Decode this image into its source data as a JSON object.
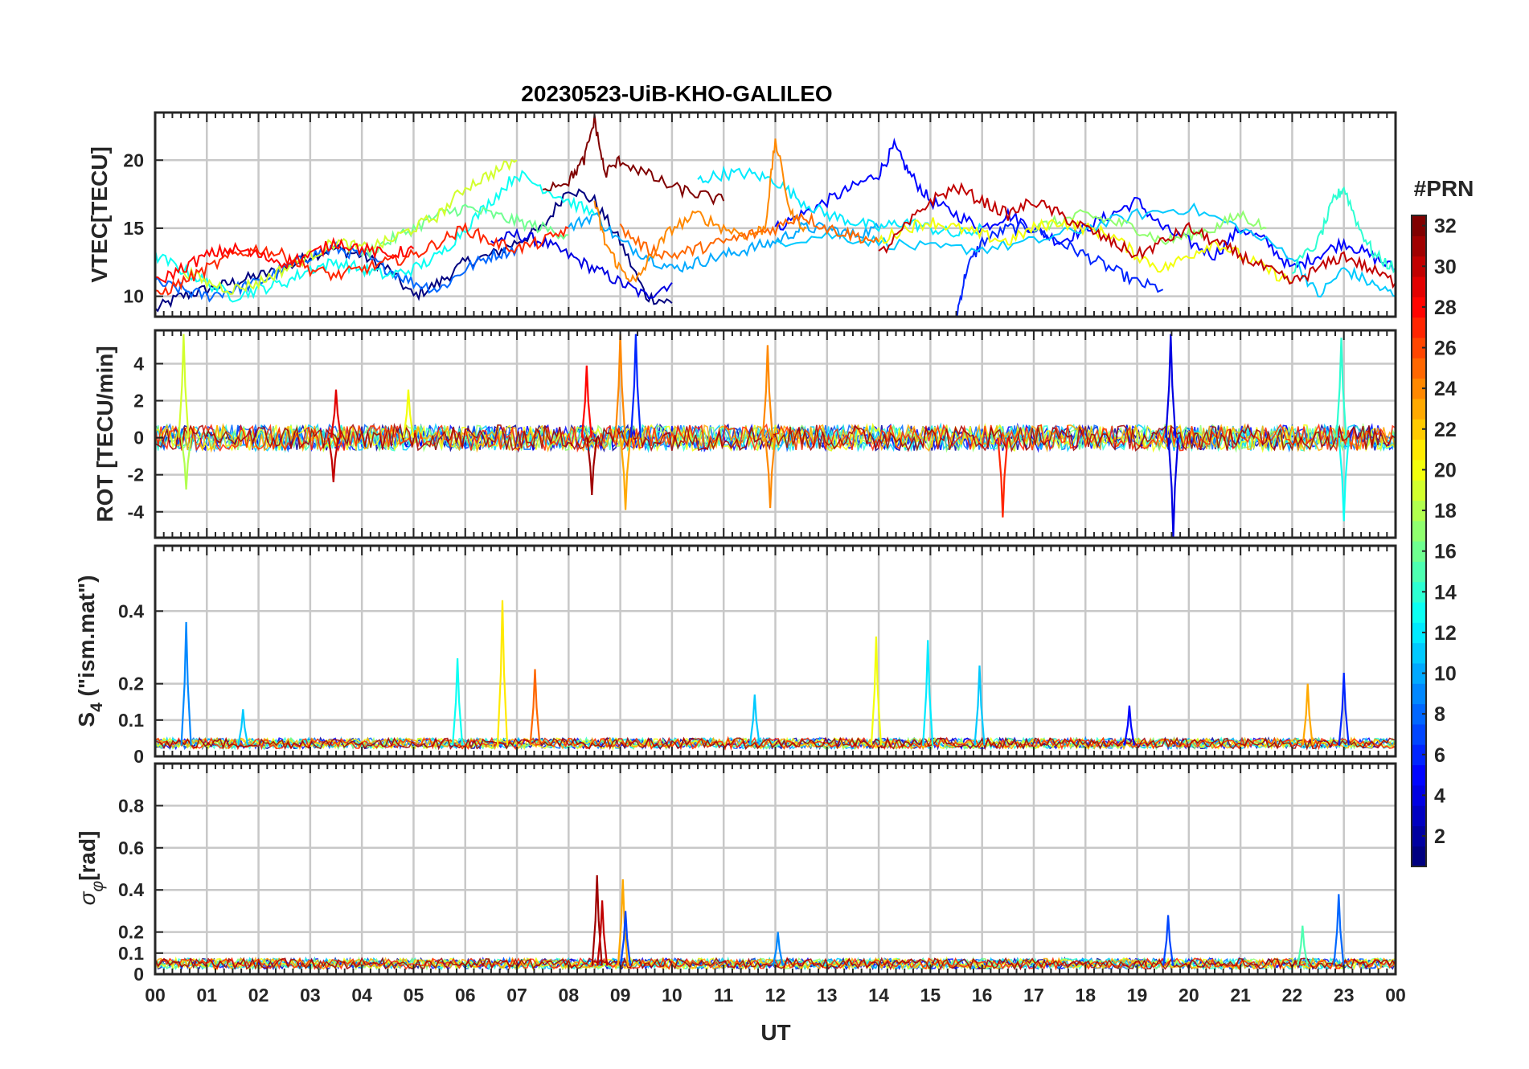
{
  "chart_data": {
    "type": "line",
    "title": "20230523-UiB-KHO-GALILEO",
    "xlabel": "UT",
    "x_tick_labels": [
      "00",
      "01",
      "02",
      "03",
      "04",
      "05",
      "06",
      "07",
      "08",
      "09",
      "10",
      "11",
      "12",
      "13",
      "14",
      "15",
      "16",
      "17",
      "18",
      "19",
      "20",
      "21",
      "22",
      "23",
      "00"
    ],
    "x_range_hours": [
      0,
      24
    ],
    "grid": true,
    "colorbar": {
      "label": "#PRN",
      "range": [
        1,
        32
      ],
      "tick_labels": [
        "2",
        "4",
        "6",
        "8",
        "10",
        "12",
        "14",
        "16",
        "18",
        "20",
        "22",
        "24",
        "26",
        "28",
        "30",
        "32"
      ],
      "colormap": "jet",
      "placement": "right"
    },
    "panels": [
      {
        "name": "vtec",
        "ylabel": "VTEC[TECU]",
        "ylim": [
          8.5,
          23.5
        ],
        "yticks": [
          10,
          15,
          20
        ],
        "series": [
          {
            "prn": 1,
            "x": [
              0,
              0.5,
              1,
              1.5,
              2,
              2.5,
              3,
              3.5,
              4,
              4.5,
              5,
              5.5,
              6,
              6.5,
              7,
              7.5,
              8,
              8.5,
              9,
              9.5,
              10
            ],
            "y": [
              9,
              10,
              10.5,
              11,
              11.5,
              12,
              13,
              13.5,
              13,
              12,
              10,
              11,
              12.5,
              13,
              14,
              15,
              18,
              17,
              14,
              10,
              9.5
            ]
          },
          {
            "prn": 4,
            "x": [
              6.5,
              7,
              7.5,
              8,
              8.5,
              9,
              9.5,
              10
            ],
            "y": [
              14,
              14.5,
              14,
              13,
              12,
              11,
              10,
              11
            ]
          },
          {
            "prn": 5,
            "x": [
              12,
              12.5,
              13,
              13.5,
              14,
              14.3,
              14.6,
              15,
              15.5,
              16,
              16.5,
              17,
              17.5,
              18,
              18.5,
              19,
              19.5,
              20,
              20.5,
              21,
              21.5,
              22,
              22.5,
              23,
              23.5,
              24
            ],
            "y": [
              15,
              16,
              17,
              18,
              19,
              21,
              19,
              17,
              16,
              15,
              16,
              15,
              14,
              15,
              16,
              17,
              15,
              14,
              13,
              15,
              14,
              12,
              13,
              14,
              13,
              12
            ]
          },
          {
            "prn": 6,
            "x": [
              15.5,
              15.7,
              16,
              16.5,
              17,
              17.5,
              18,
              18.5,
              19,
              19.5
            ],
            "y": [
              8.5,
              12,
              14,
              15,
              15,
              14,
              13,
              12,
              11,
              10.5
            ]
          },
          {
            "prn": 8,
            "x": [
              0,
              0.5,
              1,
              1.5,
              2,
              2.5,
              3,
              3.5,
              4,
              4.5,
              5,
              5.5,
              6,
              6.5,
              7
            ],
            "y": [
              11,
              10.5,
              10,
              10.5,
              11,
              12,
              13,
              13.5,
              13,
              12,
              11,
              10.5,
              12,
              13,
              13.5
            ]
          },
          {
            "prn": 10,
            "x": [
              8,
              8.5,
              9,
              9.5,
              10,
              10.5,
              11,
              11.5,
              12,
              12.5,
              13,
              13.5,
              14
            ],
            "y": [
              15,
              16,
              14,
              13,
              12,
              12.5,
              13,
              13.5,
              14,
              15,
              15,
              14.5,
              15
            ]
          },
          {
            "prn": 11,
            "x": [
              12,
              13,
              14,
              15,
              16,
              17,
              18,
              19,
              20,
              21,
              22,
              22.5,
              23,
              23.5,
              24
            ],
            "y": [
              14,
              14.5,
              14,
              13.5,
              13.5,
              14,
              15,
              16,
              16.5,
              15,
              13,
              10,
              12,
              11,
              10
            ]
          },
          {
            "prn": 12,
            "x": [
              10.5,
              11,
              11.5,
              12,
              12.5,
              13,
              13.5,
              14,
              14.5,
              15,
              15.5,
              16
            ],
            "y": [
              18.5,
              19,
              19,
              18.5,
              17,
              16,
              15.5,
              15,
              15.5,
              15,
              14.5,
              15
            ]
          },
          {
            "prn": 13,
            "x": [
              0,
              0.5,
              1,
              1.5,
              2,
              2.5,
              3,
              3.5,
              4,
              4.5,
              5,
              5.5,
              6,
              6.5,
              7,
              7.5,
              8,
              8.5
            ],
            "y": [
              13,
              12,
              11,
              10,
              10.5,
              11,
              12,
              12.5,
              12,
              11.5,
              12,
              13,
              15,
              17,
              19,
              18,
              17,
              16
            ]
          },
          {
            "prn": 14,
            "x": [
              22,
              22.5,
              22.8,
              23,
              23.3,
              23.6,
              24
            ],
            "y": [
              12,
              14,
              17,
              18,
              15,
              13,
              12
            ]
          },
          {
            "prn": 16,
            "x": [
              4,
              4.5,
              5,
              5.5,
              6,
              6.5,
              7,
              7.5,
              8
            ],
            "y": [
              13,
              14,
              15,
              16,
              16.5,
              16,
              15.5,
              15,
              14.5
            ]
          },
          {
            "prn": 17,
            "x": [
              17,
              17.5,
              18,
              18.5,
              19,
              19.5,
              20,
              20.5,
              21,
              21.5
            ],
            "y": [
              15,
              15.5,
              16,
              15.5,
              15,
              14,
              14.5,
              15,
              16,
              15
            ]
          },
          {
            "prn": 19,
            "x": [
              0.5,
              1,
              1.5,
              2,
              2.5,
              3,
              3.5,
              4,
              4.5,
              5,
              5.5,
              6,
              6.5,
              7
            ],
            "y": [
              12,
              11,
              10.5,
              11,
              12,
              13,
              14,
              13.5,
              14,
              15,
              16,
              18,
              19,
              20
            ]
          },
          {
            "prn": 20,
            "x": [
              14,
              14.5,
              15,
              15.5,
              16,
              16.5,
              17,
              17.5,
              18,
              18.5,
              19,
              19.5,
              20,
              20.5,
              21,
              21.5,
              22
            ],
            "y": [
              14,
              15,
              15.5,
              15,
              14.5,
              14,
              15,
              15.5,
              15,
              14.5,
              13,
              12,
              13,
              14,
              13,
              12,
              11
            ]
          },
          {
            "prn": 24,
            "x": [
              8.5,
              8.7,
              9,
              9.3,
              9.6,
              10,
              10.5,
              11,
              11.5,
              11.8,
              12,
              12.3,
              12.6
            ],
            "y": [
              17,
              14,
              12,
              11,
              13,
              15,
              16,
              15,
              14.5,
              15,
              21.5,
              16,
              15
            ]
          },
          {
            "prn": 25,
            "x": [
              9,
              9.5,
              10,
              10.5,
              11,
              11.5,
              12,
              12.5,
              13,
              13.5,
              14
            ],
            "y": [
              15,
              13.5,
              13,
              13.5,
              14,
              14.5,
              15,
              16,
              15,
              14.5,
              14
            ]
          },
          {
            "prn": 27,
            "x": [
              0,
              0.5,
              1,
              1.5,
              2,
              2.5,
              3,
              3.5,
              4,
              4.5,
              5,
              5.5,
              6,
              6.5,
              7,
              7.5,
              8
            ],
            "y": [
              10,
              11,
              12,
              13,
              13.5,
              13,
              12,
              11.5,
              12,
              12.5,
              13,
              14,
              15,
              14,
              13.5,
              14,
              15
            ]
          },
          {
            "prn": 28,
            "x": [
              0,
              0.5,
              1,
              1.5,
              2,
              2.5,
              3,
              3.5,
              4,
              4.5,
              5
            ],
            "y": [
              11,
              12,
              13,
              13.5,
              13,
              12.5,
              13,
              14,
              13.5,
              13,
              13.5
            ]
          },
          {
            "prn": 30,
            "x": [
              14,
              14.5,
              15,
              15.5,
              16,
              16.5,
              17,
              17.5,
              18,
              18.5,
              19,
              19.5,
              20,
              20.5,
              21,
              21.5,
              22,
              22.5,
              23,
              23.5,
              24
            ],
            "y": [
              13,
              15,
              17,
              18,
              17,
              16,
              17,
              16,
              15,
              14,
              13,
              14,
              15,
              14,
              13,
              12,
              11,
              12,
              13,
              12,
              11
            ]
          },
          {
            "prn": 32,
            "x": [
              7.5,
              8,
              8.3,
              8.5,
              8.7,
              9,
              9.5,
              10,
              10.5,
              11
            ],
            "y": [
              18,
              18.5,
              20,
              23,
              19,
              20,
              19,
              18,
              17.5,
              17
            ]
          }
        ]
      },
      {
        "name": "rot",
        "ylabel": "ROT [TECU/min]",
        "ylim": [
          -5.4,
          5.8
        ],
        "yticks": [
          -4,
          -2,
          0,
          2,
          4
        ],
        "noise_baseline": 0,
        "spikes": [
          {
            "prn": 19,
            "x": 0.55,
            "y": 5.6
          },
          {
            "prn": 18,
            "x": 0.6,
            "y": -2.8
          },
          {
            "prn": 30,
            "x": 3.45,
            "y": -2.4
          },
          {
            "prn": 29,
            "x": 3.5,
            "y": 2.6
          },
          {
            "prn": 20,
            "x": 4.9,
            "y": 2.6
          },
          {
            "prn": 28,
            "x": 8.35,
            "y": 3.9
          },
          {
            "prn": 31,
            "x": 8.45,
            "y": -3.1
          },
          {
            "prn": 24,
            "x": 9.0,
            "y": 5.6
          },
          {
            "prn": 23,
            "x": 9.1,
            "y": -3.9
          },
          {
            "prn": 6,
            "x": 9.3,
            "y": 5.6
          },
          {
            "prn": 24,
            "x": 11.85,
            "y": 5.0
          },
          {
            "prn": 24,
            "x": 11.9,
            "y": -3.8
          },
          {
            "prn": 27,
            "x": 16.4,
            "y": -4.3
          },
          {
            "prn": 4,
            "x": 19.65,
            "y": 5.6
          },
          {
            "prn": 4,
            "x": 19.7,
            "y": -5.4
          },
          {
            "prn": 14,
            "x": 22.95,
            "y": 5.4
          },
          {
            "prn": 13,
            "x": 23.0,
            "y": -4.5
          }
        ]
      },
      {
        "name": "s4",
        "ylabel": "S4 (\"ism.mat\")",
        "ylabel_main": "S",
        "ylabel_sub": "4",
        "ylabel_rest": " (\"ism.mat\")",
        "ylim": [
          0,
          0.58
        ],
        "yticks": [
          0,
          0.1,
          0.2,
          0.4
        ],
        "ytick_labels": [
          "0",
          "0.1",
          "0.2",
          "0.4"
        ],
        "noise_baseline": 0.03,
        "spikes": [
          {
            "prn": 9,
            "x": 0.6,
            "y": 0.37
          },
          {
            "prn": 11,
            "x": 1.7,
            "y": 0.13
          },
          {
            "prn": 13,
            "x": 5.85,
            "y": 0.27
          },
          {
            "prn": 21,
            "x": 6.72,
            "y": 0.43
          },
          {
            "prn": 25,
            "x": 7.35,
            "y": 0.24
          },
          {
            "prn": 11,
            "x": 11.6,
            "y": 0.17
          },
          {
            "prn": 20,
            "x": 13.95,
            "y": 0.33
          },
          {
            "prn": 12,
            "x": 14.95,
            "y": 0.32
          },
          {
            "prn": 11,
            "x": 15.95,
            "y": 0.25
          },
          {
            "prn": 5,
            "x": 18.85,
            "y": 0.14
          },
          {
            "prn": 23,
            "x": 22.3,
            "y": 0.2
          },
          {
            "prn": 6,
            "x": 23.0,
            "y": 0.23
          }
        ]
      },
      {
        "name": "sigma_phi",
        "ylabel": "σφ[rad]",
        "ylabel_main": "σ",
        "ylabel_sub": "φ",
        "ylabel_rest": "[rad]",
        "ylim": [
          0,
          1.0
        ],
        "yticks": [
          0,
          0.1,
          0.2,
          0.4,
          0.6,
          0.8
        ],
        "ytick_labels": [
          "0",
          "0.1",
          "0.2",
          "0.4",
          "0.6",
          "0.8"
        ],
        "noise_baseline": 0.04,
        "spikes": [
          {
            "prn": 31,
            "x": 8.55,
            "y": 0.47
          },
          {
            "prn": 30,
            "x": 8.65,
            "y": 0.35
          },
          {
            "prn": 23,
            "x": 9.05,
            "y": 0.45
          },
          {
            "prn": 7,
            "x": 9.1,
            "y": 0.3
          },
          {
            "prn": 9,
            "x": 12.05,
            "y": 0.2
          },
          {
            "prn": 7,
            "x": 19.6,
            "y": 0.28
          },
          {
            "prn": 15,
            "x": 22.2,
            "y": 0.23
          },
          {
            "prn": 8,
            "x": 22.9,
            "y": 0.38
          }
        ]
      }
    ]
  }
}
